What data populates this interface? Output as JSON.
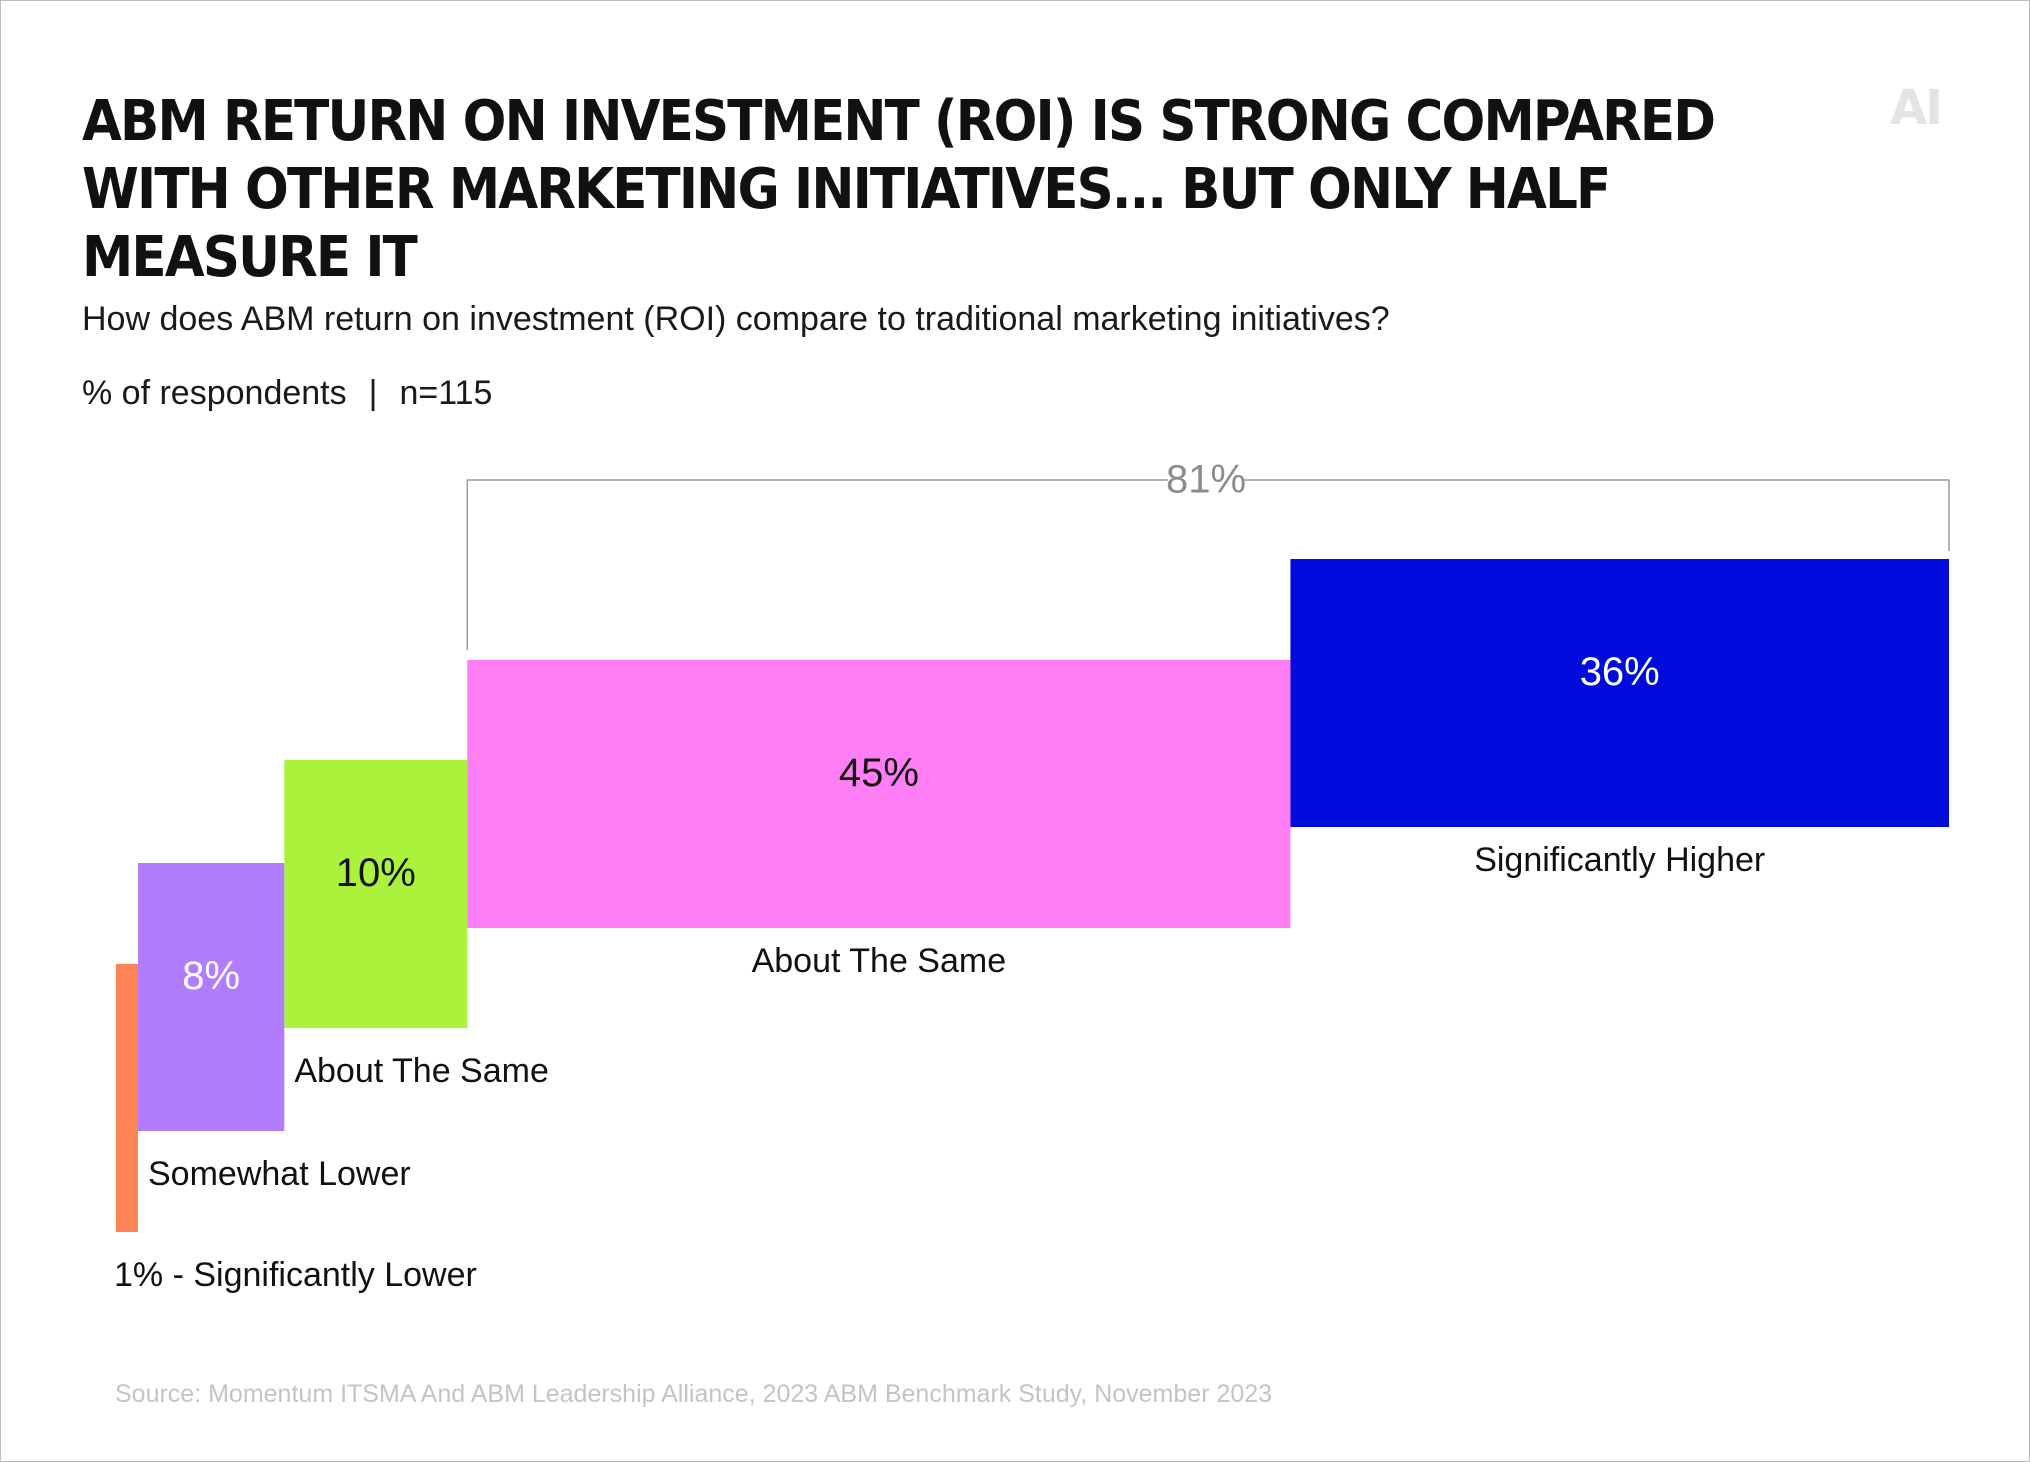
{
  "title": "ABM RETURN ON INVESTMENT (ROI) IS STRONG COMPARED WITH OTHER MARKETING INITIATIVES... BUT ONLY HALF MEASURE IT",
  "brand": "AI",
  "subtitle": "How does ABM return on investment (ROI) compare to traditional marketing initiatives?",
  "units_label": "% of respondents",
  "sample_size": "n=115",
  "source": "Source: Momentum ITSMA And ABM Leadership Alliance, 2023 ABM Benchmark Study, November 2023",
  "chart_data": {
    "type": "bar",
    "subtype": "staircase",
    "categories": [
      "Significantly Lower",
      "Somewhat Lower",
      "About The Same",
      "About The Same",
      "Significantly Higher"
    ],
    "category_labels": [
      "1% - Significantly Lower",
      "Somewhat Lower",
      "About The Same",
      "About The Same",
      "Significantly Higher"
    ],
    "values": [
      1,
      8,
      10,
      45,
      36
    ],
    "value_labels": [
      "1%",
      "8%",
      "10%",
      "45%",
      "36%"
    ],
    "colors": [
      "#ff8455",
      "#b27cff",
      "#abf23c",
      "#ff7df5",
      "#000bdd"
    ],
    "value_label_colors": [
      "#111111",
      "#ffffff",
      "#111111",
      "#111111",
      "#ffffff"
    ],
    "bracket": {
      "label": "81%",
      "from_index": 3,
      "to_index": 4
    },
    "grid": false,
    "legend": "none"
  }
}
